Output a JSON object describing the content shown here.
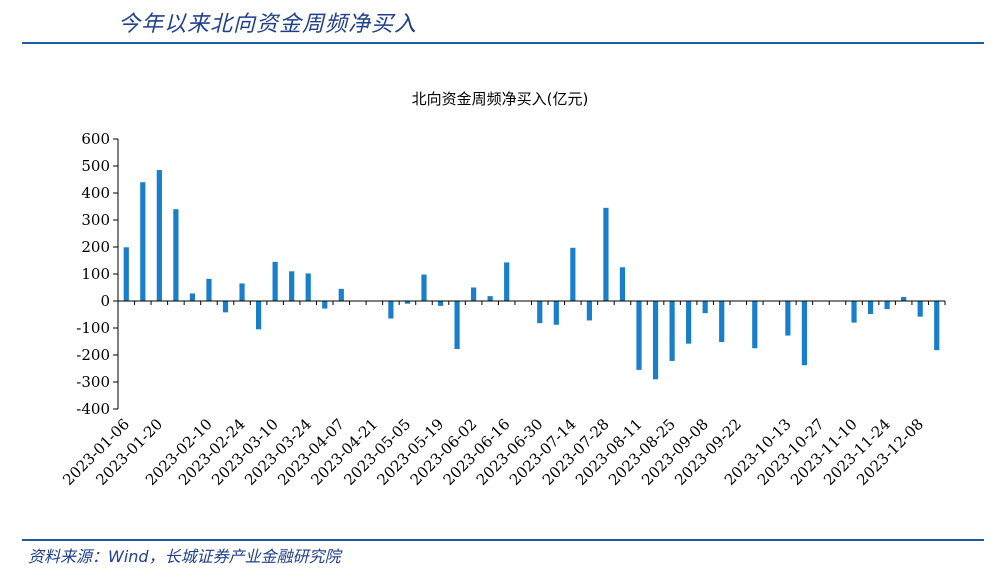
{
  "header": {
    "title": "今年以来北向资金周频净买入"
  },
  "footer": {
    "source": "资料来源：Wind，长城证券产业金融研究院"
  },
  "colors": {
    "bar": "#1a7fca",
    "header_text": "#1f3f8f",
    "rule": "#1f5aa8"
  },
  "chart_data": {
    "type": "bar",
    "title": "北向资金周频净买入(亿元)",
    "xlabel": "",
    "ylabel": "",
    "ylim": [
      -400,
      600
    ],
    "y_ticks": [
      600,
      500,
      400,
      300,
      200,
      100,
      0,
      -100,
      -200,
      -300,
      -400
    ],
    "grid": false,
    "legend": "none",
    "tick_label_rotation": -45,
    "categories": [
      "2023-01-06",
      "2023-01-13",
      "2023-01-20",
      "2023-01-27",
      "2023-02-03",
      "2023-02-10",
      "2023-02-17",
      "2023-02-24",
      "2023-03-03",
      "2023-03-10",
      "2023-03-17",
      "2023-03-24",
      "2023-03-31",
      "2023-04-07",
      "2023-04-14",
      "2023-04-21",
      "2023-04-28",
      "2023-05-05",
      "2023-05-12",
      "2023-05-19",
      "2023-05-26",
      "2023-06-02",
      "2023-06-09",
      "2023-06-16",
      "2023-06-23",
      "2023-06-30",
      "2023-07-07",
      "2023-07-14",
      "2023-07-21",
      "2023-07-28",
      "2023-08-04",
      "2023-08-11",
      "2023-08-18",
      "2023-08-25",
      "2023-09-01",
      "2023-09-08",
      "2023-09-15",
      "2023-09-22",
      "2023-09-29",
      "2023-10-06",
      "2023-10-13",
      "2023-10-20",
      "2023-10-27",
      "2023-11-03",
      "2023-11-10",
      "2023-11-17",
      "2023-11-24",
      "2023-12-01",
      "2023-12-08",
      "2023-12-15"
    ],
    "labeled_ticks": [
      "2023-01-06",
      "2023-01-20",
      "2023-02-10",
      "2023-02-24",
      "2023-03-10",
      "2023-03-24",
      "2023-04-07",
      "2023-04-21",
      "2023-05-05",
      "2023-05-19",
      "2023-06-02",
      "2023-06-16",
      "2023-06-30",
      "2023-07-14",
      "2023-07-28",
      "2023-08-11",
      "2023-08-25",
      "2023-09-08",
      "2023-09-22",
      "2023-10-13",
      "2023-10-27",
      "2023-11-10",
      "2023-11-24",
      "2023-12-08"
    ],
    "values": [
      199,
      440,
      485,
      340,
      28,
      82,
      -42,
      65,
      -105,
      145,
      110,
      102,
      -28,
      45,
      0,
      0,
      -65,
      -10,
      98,
      -18,
      -178,
      50,
      18,
      143,
      0,
      -82,
      -88,
      197,
      -72,
      345,
      125,
      -255,
      -290,
      -222,
      -158,
      -45,
      -152,
      0,
      -175,
      0,
      -128,
      -238,
      0,
      0,
      -80,
      -48,
      -30,
      15,
      -58,
      -182
    ]
  }
}
